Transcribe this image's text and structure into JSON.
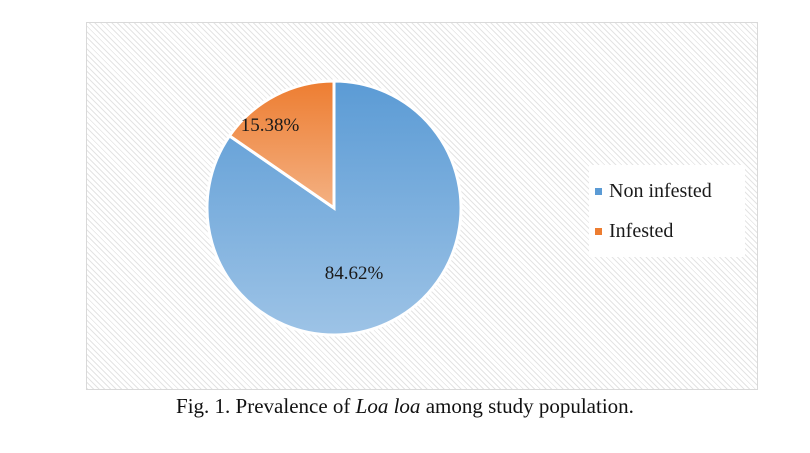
{
  "chart_data": {
    "type": "pie",
    "categories": [
      "Non infested",
      "Infested"
    ],
    "values": [
      84.62,
      15.38
    ],
    "data_labels": [
      "84.62%",
      "15.38%"
    ],
    "colors": [
      "#5b9bd5",
      "#ed7d31"
    ],
    "legend": {
      "placement": "right",
      "entries": [
        "Non infested",
        "Infested"
      ]
    },
    "title": ""
  },
  "caption": {
    "prefix": "Fig. 1. Prevalence of ",
    "italic": "Loa loa",
    "suffix": " among study population."
  }
}
